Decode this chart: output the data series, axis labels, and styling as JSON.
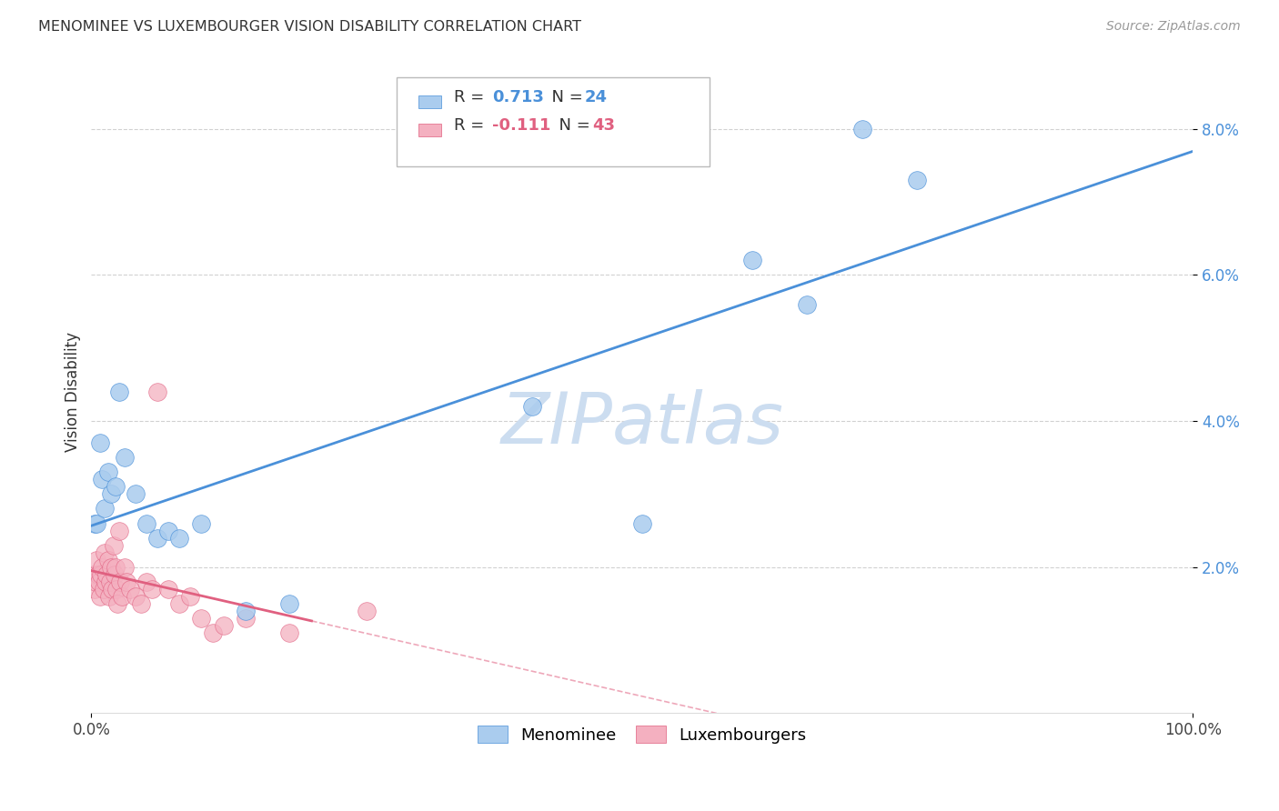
{
  "title": "MENOMINEE VS LUXEMBOURGER VISION DISABILITY CORRELATION CHART",
  "source": "Source: ZipAtlas.com",
  "ylabel": "Vision Disability",
  "menominee_R": 0.713,
  "menominee_N": 24,
  "luxembourger_R": -0.111,
  "luxembourger_N": 43,
  "menominee_color": "#aaccee",
  "luxembourger_color": "#f4b0c0",
  "menominee_line_color": "#4a90d9",
  "luxembourger_line_color": "#e06080",
  "menominee_x": [
    0.3,
    0.5,
    0.8,
    1.0,
    1.2,
    1.5,
    1.8,
    2.2,
    2.5,
    3.0,
    4.0,
    5.0,
    6.0,
    7.0,
    8.0,
    10.0,
    14.0,
    18.0,
    40.0,
    50.0,
    60.0,
    65.0,
    70.0,
    75.0
  ],
  "menominee_y": [
    2.6,
    2.6,
    3.7,
    3.2,
    2.8,
    3.3,
    3.0,
    3.1,
    4.4,
    3.5,
    3.0,
    2.6,
    2.4,
    2.5,
    2.4,
    2.6,
    1.4,
    1.5,
    4.2,
    2.6,
    6.2,
    5.6,
    8.0,
    7.3
  ],
  "luxembourger_x": [
    0.2,
    0.3,
    0.4,
    0.5,
    0.6,
    0.7,
    0.8,
    0.9,
    1.0,
    1.1,
    1.2,
    1.3,
    1.4,
    1.5,
    1.6,
    1.7,
    1.8,
    1.9,
    2.0,
    2.1,
    2.2,
    2.3,
    2.4,
    2.5,
    2.6,
    2.8,
    3.0,
    3.2,
    3.5,
    4.0,
    4.5,
    5.0,
    5.5,
    6.0,
    7.0,
    8.0,
    9.0,
    10.0,
    11.0,
    12.0,
    14.0,
    18.0,
    25.0
  ],
  "luxembourger_y": [
    1.9,
    1.7,
    1.8,
    2.1,
    1.9,
    1.8,
    1.6,
    1.9,
    2.0,
    1.7,
    2.2,
    1.8,
    1.9,
    2.1,
    1.6,
    1.8,
    2.0,
    1.7,
    2.3,
    1.9,
    2.0,
    1.7,
    1.5,
    2.5,
    1.8,
    1.6,
    2.0,
    1.8,
    1.7,
    1.6,
    1.5,
    1.8,
    1.7,
    4.4,
    1.7,
    1.5,
    1.6,
    1.3,
    1.1,
    1.2,
    1.3,
    1.1,
    1.4
  ],
  "xmin": 0.0,
  "xmax": 100.0,
  "ymin": 0.0,
  "ymax": 8.8,
  "background_color": "#ffffff",
  "grid_color": "#cccccc",
  "watermark_text": "ZIPatlas",
  "watermark_color": "#ccddf0"
}
